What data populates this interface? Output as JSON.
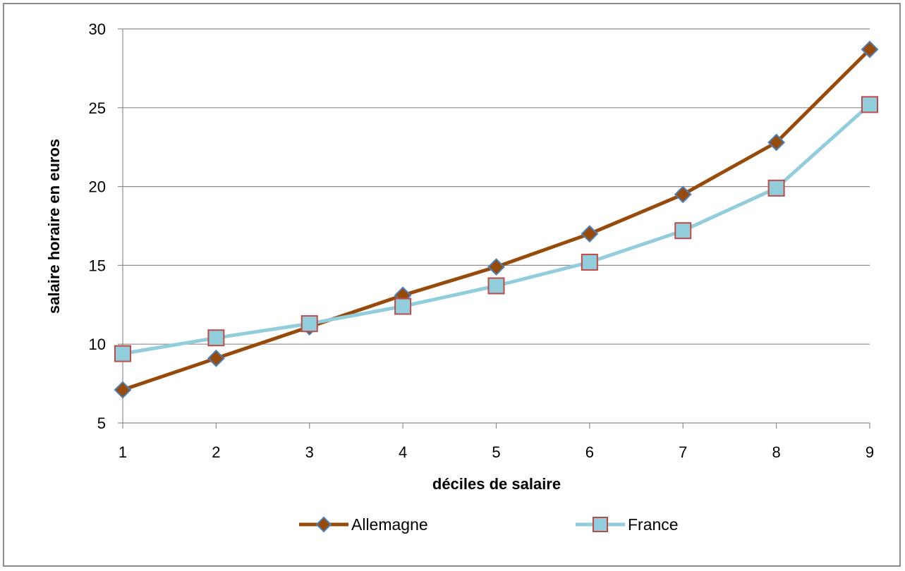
{
  "chart_data": {
    "type": "line",
    "title": "",
    "xlabel": "déciles de salaire",
    "ylabel": "salaire horaire en euros",
    "x": [
      1,
      2,
      3,
      4,
      5,
      6,
      7,
      8,
      9
    ],
    "xlim": [
      1,
      9
    ],
    "ylim": [
      5,
      30
    ],
    "y_ticks": [
      5,
      10,
      15,
      20,
      25,
      30
    ],
    "x_ticks": [
      1,
      2,
      3,
      4,
      5,
      6,
      7,
      8,
      9
    ],
    "grid": "horizontal",
    "legend_position": "bottom",
    "series": [
      {
        "name": "Allemagne",
        "values": [
          7.1,
          9.1,
          11.1,
          13.1,
          14.9,
          17.0,
          19.5,
          22.8,
          28.7
        ],
        "line_color": "#964B0A",
        "marker": "diamond",
        "marker_fill": "#964B0A",
        "marker_edge": "#4A7EBB"
      },
      {
        "name": "France",
        "values": [
          9.4,
          10.4,
          11.3,
          12.4,
          13.7,
          15.2,
          17.2,
          19.9,
          25.2
        ],
        "line_color": "#92CDDC",
        "marker": "square",
        "marker_fill": "#92CDDC",
        "marker_edge": "#BE4B48"
      }
    ]
  }
}
